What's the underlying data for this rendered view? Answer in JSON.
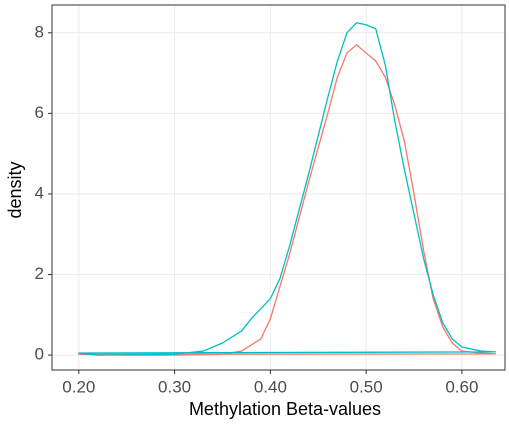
{
  "chart_data": {
    "type": "line",
    "x_label": "Methylation Beta-values",
    "y_label": "density",
    "xlim": [
      0.172,
      0.645
    ],
    "ylim": [
      -0.37,
      8.69
    ],
    "xticks": [
      {
        "value": 0.2,
        "label": "0.20"
      },
      {
        "value": 0.3,
        "label": "0.30"
      },
      {
        "value": 0.4,
        "label": "0.40"
      },
      {
        "value": 0.5,
        "label": "0.50"
      },
      {
        "value": 0.6,
        "label": "0.60"
      }
    ],
    "yticks": [
      0,
      2,
      4,
      6,
      8
    ],
    "grid": true,
    "series": [
      {
        "color": "#F8766D",
        "x": [
          0.2,
          0.25,
          0.3,
          0.35,
          0.37,
          0.39,
          0.4,
          0.42,
          0.44,
          0.46,
          0.47,
          0.48,
          0.49,
          0.5,
          0.51,
          0.52,
          0.53,
          0.54,
          0.55,
          0.56,
          0.57,
          0.58,
          0.59,
          0.6,
          0.62,
          0.635
        ],
        "values": [
          0.02,
          0,
          0,
          0.02,
          0.1,
          0.4,
          0.9,
          2.5,
          4.3,
          6.0,
          6.9,
          7.5,
          7.7,
          7.5,
          7.3,
          6.9,
          6.2,
          5.3,
          4.0,
          2.6,
          1.4,
          0.7,
          0.3,
          0.1,
          0.05,
          0.03
        ]
      },
      {
        "color": "#00BFC4",
        "x": [
          0.2,
          0.22,
          0.3,
          0.33,
          0.35,
          0.37,
          0.38,
          0.4,
          0.41,
          0.42,
          0.44,
          0.46,
          0.47,
          0.48,
          0.49,
          0.5,
          0.51,
          0.52,
          0.53,
          0.54,
          0.55,
          0.56,
          0.57,
          0.58,
          0.59,
          0.6,
          0.62,
          0.635
        ],
        "values": [
          0.05,
          0,
          0.02,
          0.1,
          0.3,
          0.6,
          0.9,
          1.4,
          1.9,
          2.7,
          4.5,
          6.4,
          7.3,
          8.0,
          8.25,
          8.2,
          8.1,
          7.2,
          5.8,
          4.6,
          3.5,
          2.4,
          1.5,
          0.8,
          0.4,
          0.2,
          0.1,
          0.08
        ]
      }
    ]
  }
}
